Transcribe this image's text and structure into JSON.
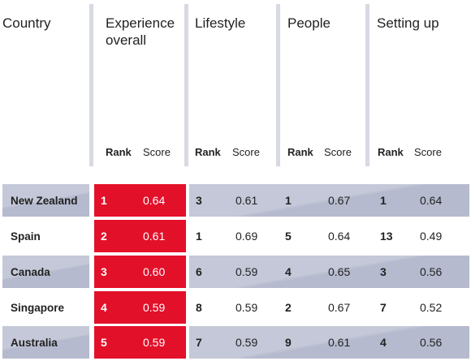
{
  "header": {
    "country": "Country",
    "experience_line1": "Experience",
    "experience_line2": "overall",
    "lifestyle": "Lifestyle",
    "people": "People",
    "setting_up": "Setting up",
    "rank": "Rank",
    "score": "Score"
  },
  "colors": {
    "accent_red": "#e3102a",
    "row_shade": "#c4c8d8",
    "separator": "#d7d9e3"
  },
  "rows": [
    {
      "country": "New Zealand",
      "overall_rank": "1",
      "overall_score": "0.64",
      "lifestyle_rank": "3",
      "lifestyle_score": "0.61",
      "people_rank": "1",
      "people_score": "0.67",
      "setup_rank": "1",
      "setup_score": "0.64"
    },
    {
      "country": "Spain",
      "overall_rank": "2",
      "overall_score": "0.61",
      "lifestyle_rank": "1",
      "lifestyle_score": "0.69",
      "people_rank": "5",
      "people_score": "0.64",
      "setup_rank": "13",
      "setup_score": "0.49"
    },
    {
      "country": "Canada",
      "overall_rank": "3",
      "overall_score": "0.60",
      "lifestyle_rank": "6",
      "lifestyle_score": "0.59",
      "people_rank": "4",
      "people_score": "0.65",
      "setup_rank": "3",
      "setup_score": "0.56"
    },
    {
      "country": "Singapore",
      "overall_rank": "4",
      "overall_score": "0.59",
      "lifestyle_rank": "8",
      "lifestyle_score": "0.59",
      "people_rank": "2",
      "people_score": "0.67",
      "setup_rank": "7",
      "setup_score": "0.52"
    },
    {
      "country": "Australia",
      "overall_rank": "5",
      "overall_score": "0.59",
      "lifestyle_rank": "7",
      "lifestyle_score": "0.59",
      "people_rank": "9",
      "people_score": "0.61",
      "setup_rank": "4",
      "setup_score": "0.56"
    }
  ]
}
